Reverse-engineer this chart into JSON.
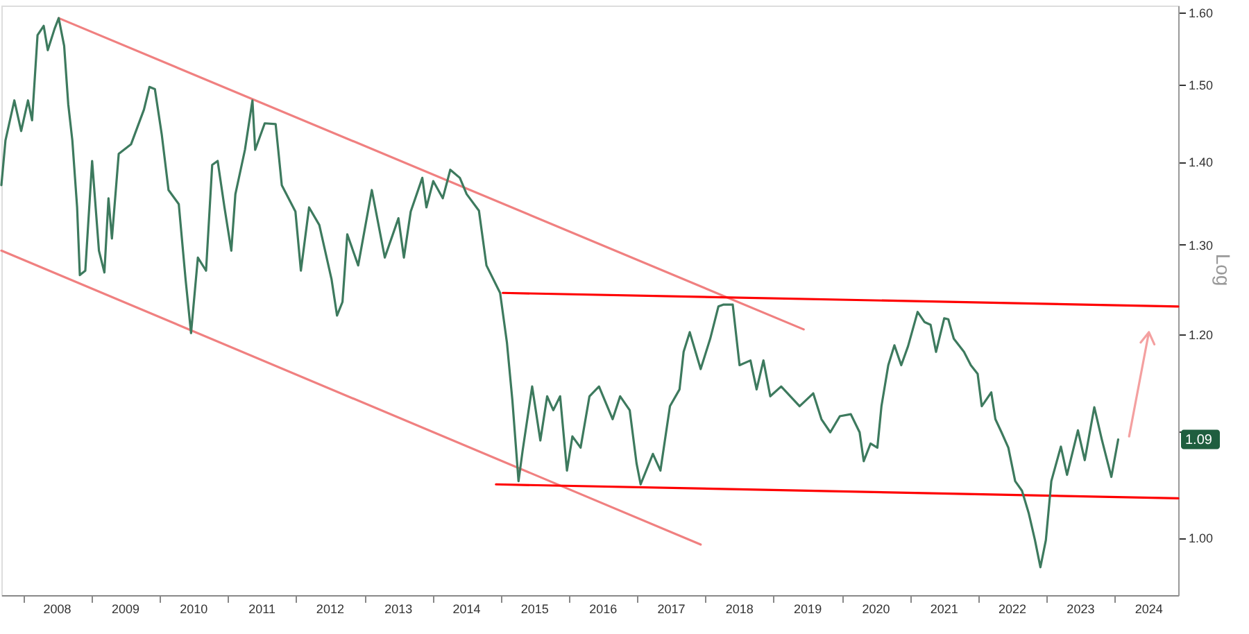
{
  "chart_data": {
    "type": "line",
    "ylabel": "Log",
    "log": "y",
    "grid": false,
    "marker": "none",
    "line_style": "solid",
    "xlim": [
      2007.68,
      2024.93
    ],
    "ylim": [
      0.95,
      1.61
    ],
    "yticks": [
      {
        "value": 1.0,
        "label": "1.00"
      },
      {
        "value": 1.1,
        "label": null
      },
      {
        "value": 1.2,
        "label": "1.20"
      },
      {
        "value": 1.3,
        "label": "1.30"
      },
      {
        "value": 1.4,
        "label": "1.40"
      },
      {
        "value": 1.5,
        "label": "1.50"
      },
      {
        "value": 1.6,
        "label": "1.60"
      }
    ],
    "xticks": [
      {
        "value": 2008,
        "label": null
      },
      {
        "value": 2008.5,
        "label": "2008"
      },
      {
        "value": 2009,
        "label": null
      },
      {
        "value": 2009.5,
        "label": "2009"
      },
      {
        "value": 2010,
        "label": null
      },
      {
        "value": 2010.5,
        "label": "2010"
      },
      {
        "value": 2011,
        "label": null
      },
      {
        "value": 2011.5,
        "label": "2011"
      },
      {
        "value": 2012,
        "label": null
      },
      {
        "value": 2012.5,
        "label": "2012"
      },
      {
        "value": 2013,
        "label": null
      },
      {
        "value": 2013.5,
        "label": "2013"
      },
      {
        "value": 2014,
        "label": null
      },
      {
        "value": 2014.5,
        "label": "2014"
      },
      {
        "value": 2015,
        "label": null
      },
      {
        "value": 2015.5,
        "label": "2015"
      },
      {
        "value": 2016,
        "label": null
      },
      {
        "value": 2016.5,
        "label": "2016"
      },
      {
        "value": 2017,
        "label": null
      },
      {
        "value": 2017.5,
        "label": "2017"
      },
      {
        "value": 2018,
        "label": null
      },
      {
        "value": 2018.5,
        "label": "2018"
      },
      {
        "value": 2019,
        "label": null
      },
      {
        "value": 2019.5,
        "label": "2019"
      },
      {
        "value": 2020,
        "label": null
      },
      {
        "value": 2020.5,
        "label": "2020"
      },
      {
        "value": 2021,
        "label": null
      },
      {
        "value": 2021.5,
        "label": "2021"
      },
      {
        "value": 2022,
        "label": null
      },
      {
        "value": 2022.5,
        "label": "2022"
      },
      {
        "value": 2023,
        "label": null
      },
      {
        "value": 2023.5,
        "label": "2023"
      },
      {
        "value": 2024,
        "label": null
      },
      {
        "value": 2024.5,
        "label": "2024"
      }
    ],
    "annotations": [
      "1.09"
    ],
    "series": [
      {
        "color": "#f08080",
        "x": [
          2008.52,
          2019.44
        ],
        "values": [
          1.592,
          1.205
        ]
      },
      {
        "color": "#f08080",
        "x": [
          2007.68,
          2017.93
        ],
        "values": [
          1.293,
          0.994
        ]
      },
      {
        "color": "#ff0000",
        "x": [
          2015.03,
          2024.93
        ],
        "values": [
          1.245,
          1.23
        ]
      },
      {
        "color": "#ff0000",
        "x": [
          2014.93,
          2024.93
        ],
        "values": [
          1.049,
          1.036
        ]
      },
      {
        "color": "#f4a0a0",
        "x": [
          2024.21,
          2024.5,
          2024.38,
          2024.5,
          2024.58
        ],
        "values": [
          1.095,
          1.202,
          1.191,
          1.202,
          1.189
        ]
      },
      {
        "color": "#3d7a5e",
        "x": [
          2007.68,
          2007.74,
          2007.87,
          2007.97,
          2008.07,
          2008.13,
          2008.21,
          2008.3,
          2008.36,
          2008.46,
          2008.52,
          2008.6,
          2008.66,
          2008.72,
          2008.79,
          2008.83,
          2008.91,
          2009.01,
          2009.11,
          2009.19,
          2009.25,
          2009.3,
          2009.4,
          2009.58,
          2009.77,
          2009.85,
          2009.93,
          2010.03,
          2010.13,
          2010.28,
          2010.38,
          2010.46,
          2010.56,
          2010.68,
          2010.77,
          2010.85,
          2010.95,
          2011.05,
          2011.11,
          2011.25,
          2011.36,
          2011.4,
          2011.54,
          2011.7,
          2011.79,
          2011.99,
          2012.07,
          2012.19,
          2012.34,
          2012.52,
          2012.6,
          2012.68,
          2012.75,
          2012.91,
          2013.11,
          2013.3,
          2013.5,
          2013.58,
          2013.68,
          2013.85,
          2013.91,
          2014.01,
          2014.15,
          2014.26,
          2014.4,
          2014.5,
          2014.68,
          2014.79,
          2014.99,
          2015.09,
          2015.17,
          2015.26,
          2015.32,
          2015.46,
          2015.58,
          2015.68,
          2015.77,
          2015.87,
          2015.97,
          2016.05,
          2016.17,
          2016.3,
          2016.44,
          2016.5,
          2016.64,
          2016.75,
          2016.89,
          2016.99,
          2017.05,
          2017.23,
          2017.34,
          2017.48,
          2017.62,
          2017.68,
          2017.77,
          2017.93,
          2018.07,
          2018.19,
          2018.26,
          2018.4,
          2018.5,
          2018.66,
          2018.75,
          2018.85,
          2018.95,
          2019.11,
          2019.38,
          2019.58,
          2019.7,
          2019.83,
          2019.97,
          2020.13,
          2020.26,
          2020.32,
          2020.42,
          2020.52,
          2020.58,
          2020.68,
          2020.77,
          2020.87,
          2020.97,
          2021.11,
          2021.21,
          2021.3,
          2021.38,
          2021.5,
          2021.56,
          2021.64,
          2021.79,
          2021.89,
          2021.99,
          2022.05,
          2022.19,
          2022.25,
          2022.34,
          2022.44,
          2022.54,
          2022.64,
          2022.74,
          2022.83,
          2022.91,
          2022.99,
          2023.07,
          2023.21,
          2023.3,
          2023.46,
          2023.56,
          2023.7,
          2023.81,
          2023.95,
          2024.05
        ],
        "values": [
          1.371,
          1.427,
          1.479,
          1.439,
          1.479,
          1.453,
          1.568,
          1.581,
          1.547,
          1.577,
          1.592,
          1.553,
          1.474,
          1.427,
          1.344,
          1.265,
          1.27,
          1.401,
          1.293,
          1.268,
          1.355,
          1.307,
          1.41,
          1.422,
          1.467,
          1.497,
          1.494,
          1.435,
          1.365,
          1.348,
          1.26,
          1.201,
          1.285,
          1.27,
          1.396,
          1.401,
          1.344,
          1.293,
          1.36,
          1.415,
          1.479,
          1.415,
          1.449,
          1.448,
          1.371,
          1.339,
          1.27,
          1.344,
          1.323,
          1.26,
          1.22,
          1.235,
          1.312,
          1.276,
          1.365,
          1.285,
          1.331,
          1.285,
          1.339,
          1.38,
          1.344,
          1.376,
          1.355,
          1.39,
          1.38,
          1.36,
          1.34,
          1.276,
          1.245,
          1.191,
          1.131,
          1.052,
          1.081,
          1.145,
          1.091,
          1.135,
          1.121,
          1.135,
          1.062,
          1.095,
          1.084,
          1.135,
          1.145,
          1.135,
          1.112,
          1.135,
          1.121,
          1.069,
          1.049,
          1.078,
          1.062,
          1.125,
          1.142,
          1.181,
          1.202,
          1.163,
          1.195,
          1.23,
          1.232,
          1.232,
          1.167,
          1.172,
          1.142,
          1.172,
          1.135,
          1.145,
          1.125,
          1.138,
          1.112,
          1.099,
          1.115,
          1.117,
          1.099,
          1.071,
          1.088,
          1.084,
          1.125,
          1.167,
          1.188,
          1.167,
          1.187,
          1.224,
          1.213,
          1.21,
          1.181,
          1.217,
          1.216,
          1.195,
          1.181,
          1.167,
          1.158,
          1.125,
          1.139,
          1.112,
          1.099,
          1.084,
          1.052,
          1.043,
          1.022,
          0.998,
          0.974,
          0.998,
          1.052,
          1.085,
          1.058,
          1.101,
          1.072,
          1.124,
          1.092,
          1.056,
          1.092
        ]
      }
    ]
  }
}
